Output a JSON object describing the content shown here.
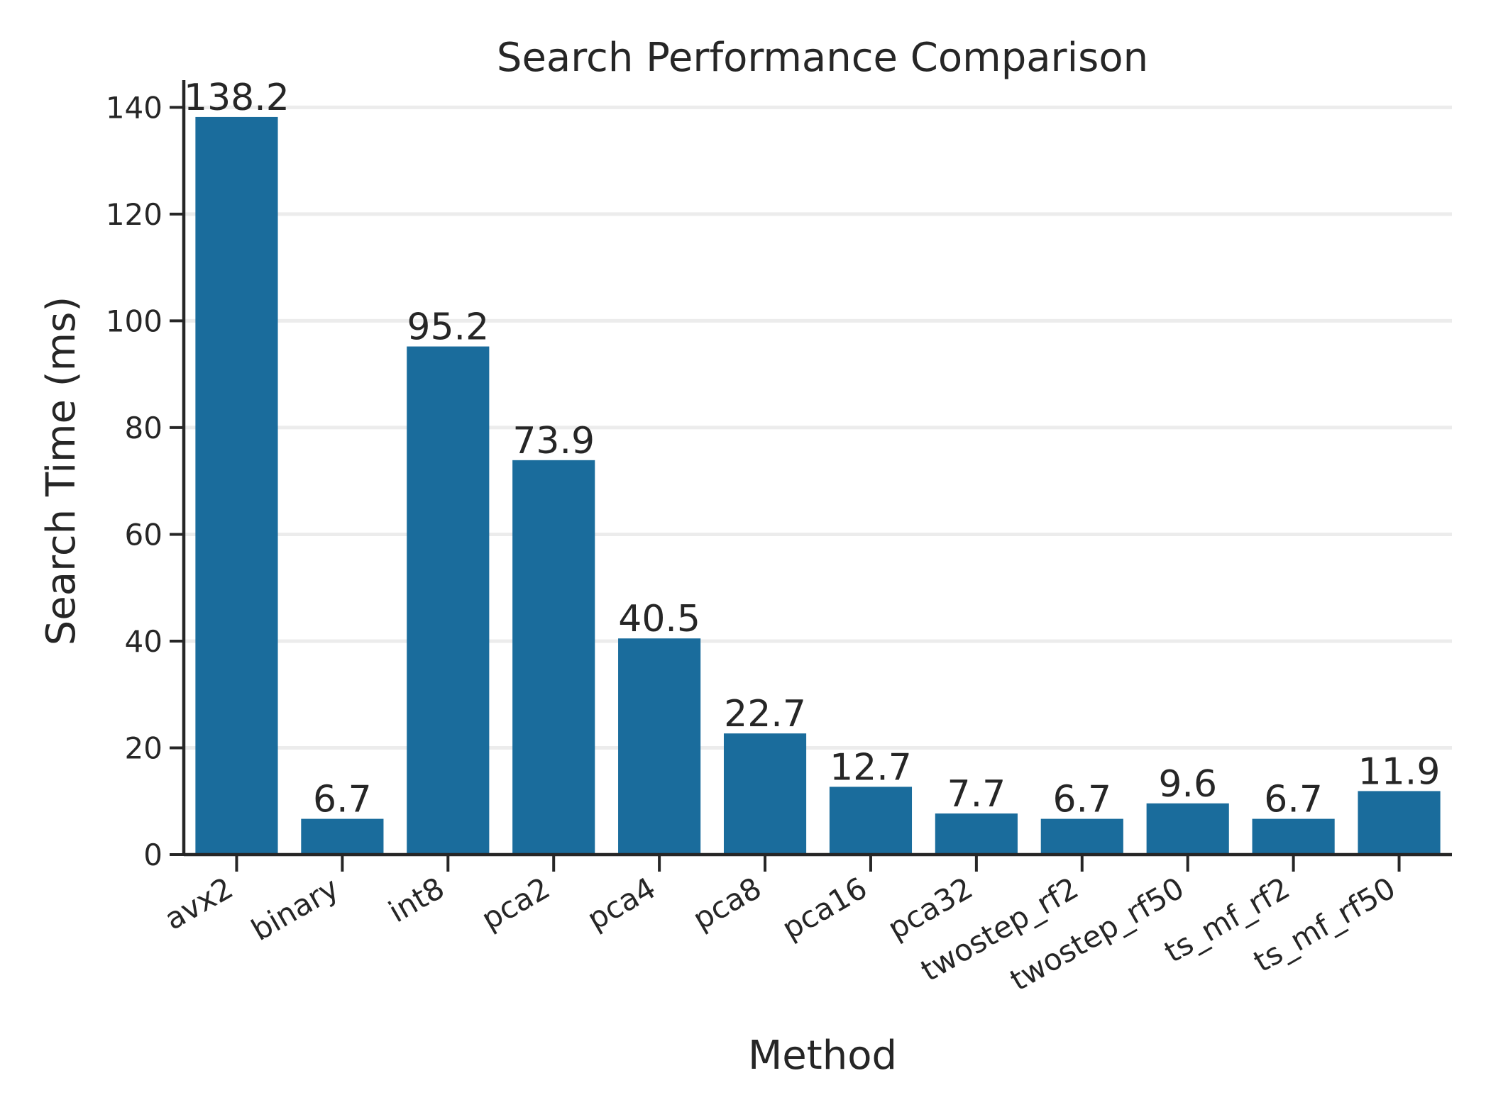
{
  "chart_data": {
    "type": "bar",
    "title": "Search Performance Comparison",
    "xlabel": "Method",
    "ylabel": "Search Time (ms)",
    "categories": [
      "avx2",
      "binary",
      "int8",
      "pca2",
      "pca4",
      "pca8",
      "pca16",
      "pca32",
      "twostep_rf2",
      "twostep_rf50",
      "ts_mf_rf2",
      "ts_mf_rf50"
    ],
    "values": [
      138.2,
      6.7,
      95.2,
      73.9,
      40.5,
      22.7,
      12.7,
      7.7,
      6.7,
      9.6,
      6.7,
      11.9
    ],
    "data_labels": [
      "138.2",
      "6.7",
      "95.2",
      "73.9",
      "40.5",
      "22.7",
      "12.7",
      "7.7",
      "6.7",
      "9.6",
      "6.7",
      "11.9"
    ],
    "yticks": [
      0,
      20,
      40,
      60,
      80,
      100,
      120,
      140
    ],
    "ylim": [
      0,
      145.1
    ],
    "grid": "horizontal",
    "legend": "none",
    "bar_color": "#1a6c9c",
    "grid_color": "#ececec",
    "axis_color": "#262626"
  }
}
